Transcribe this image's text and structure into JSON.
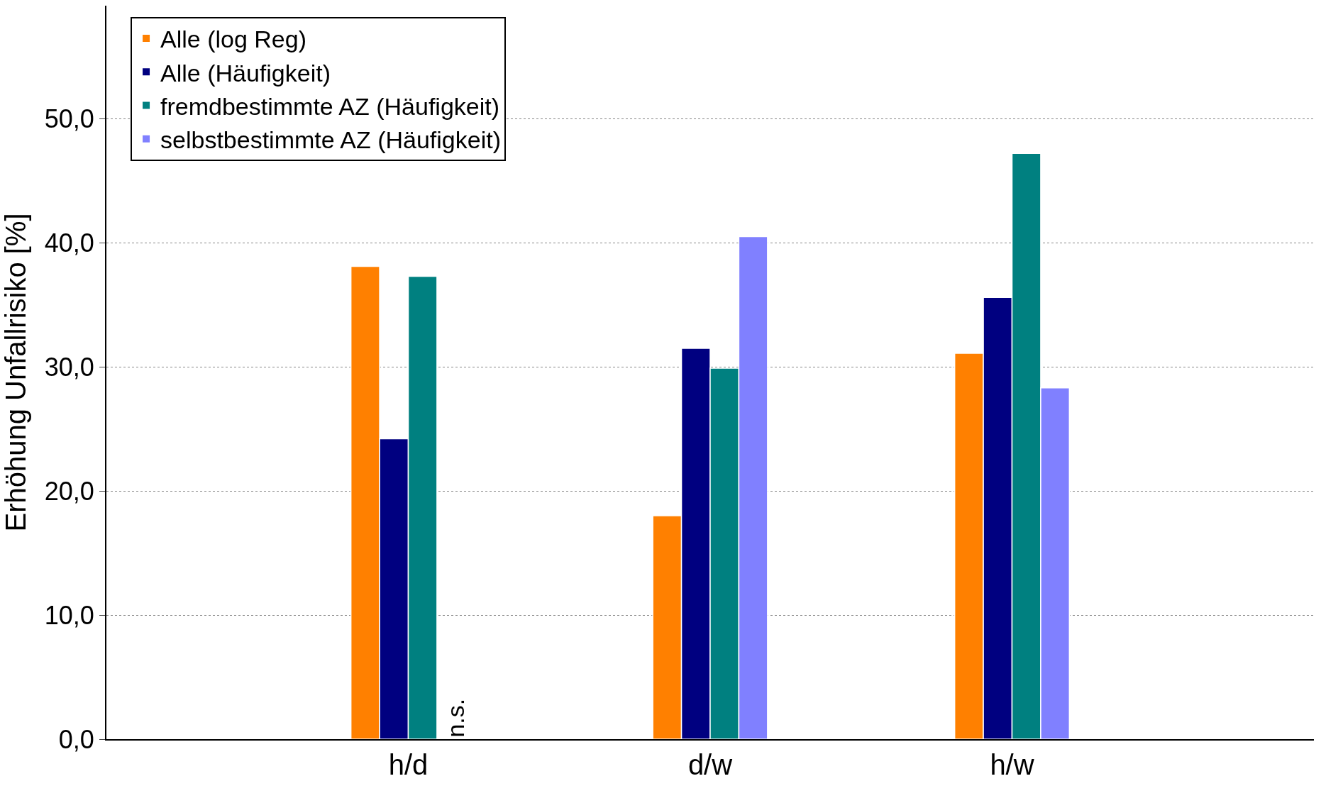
{
  "chart_data": {
    "type": "bar",
    "ylabel": "Erhöhung Unfallrisiko [%]",
    "categories": [
      "h/d",
      "d/w",
      "h/w"
    ],
    "series": [
      {
        "name": "Alle (log Reg)",
        "color": "#ff8000",
        "values": [
          38.1,
          18.0,
          31.1
        ]
      },
      {
        "name": "Alle (Häufigkeit)",
        "color": "#000080",
        "values": [
          24.2,
          31.5,
          35.6
        ]
      },
      {
        "name": "fremdbestimmte AZ (Häufigkeit)",
        "color": "#008080",
        "values": [
          37.3,
          29.9,
          47.2
        ]
      },
      {
        "name": "selbstbestimmte AZ (Häufigkeit)",
        "color": "#8080ff",
        "values": [
          null,
          40.5,
          28.3
        ]
      }
    ],
    "ylim": [
      0,
      59.1
    ],
    "yticks": [
      {
        "value": 0,
        "label": "0,0"
      },
      {
        "value": 10,
        "label": "10,0"
      },
      {
        "value": 20,
        "label": "20,0"
      },
      {
        "value": 30,
        "label": "30,0"
      },
      {
        "value": 40,
        "label": "40,0"
      },
      {
        "value": 50,
        "label": "50,0"
      }
    ],
    "grid": "y",
    "legend": "top left",
    "annotations": [
      {
        "text": "n.s.",
        "x": "h/d",
        "y": 0
      }
    ]
  }
}
